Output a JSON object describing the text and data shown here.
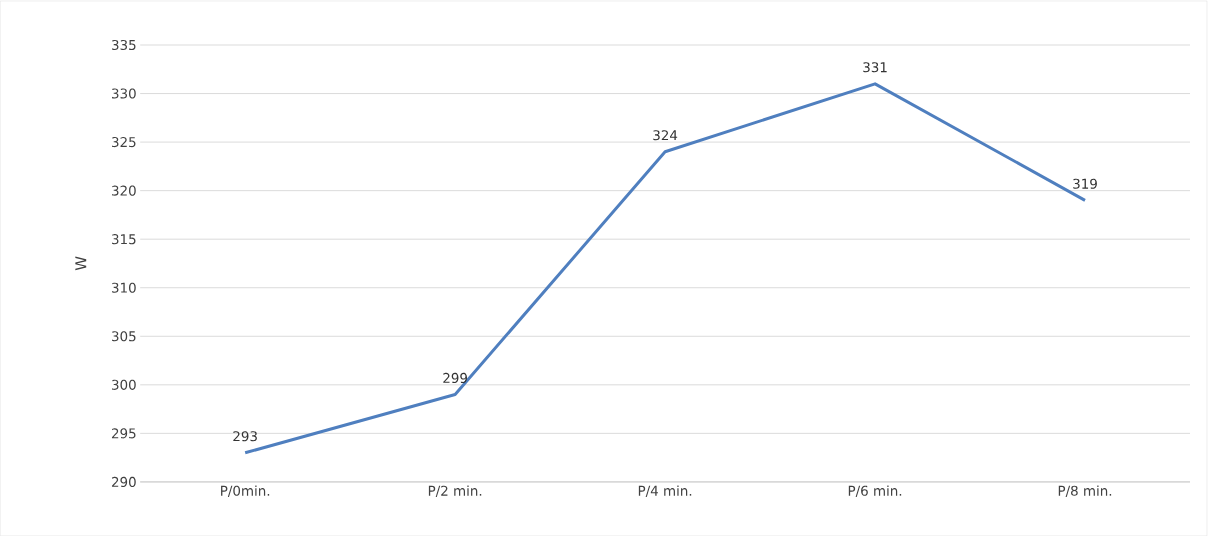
{
  "chart_data": {
    "type": "line",
    "ylabel": "W",
    "categories": [
      "P/0min.",
      "P/2 min.",
      "P/4 min.",
      "P/6 min.",
      "P/8 min."
    ],
    "series": [
      {
        "color": "#4f7fbf",
        "values": [
          293,
          299,
          324,
          331,
          319
        ]
      }
    ],
    "ylim": [
      290,
      335
    ],
    "yticks": [
      290,
      295,
      300,
      305,
      310,
      315,
      320,
      325,
      330,
      335
    ],
    "grid": "y",
    "data_labels": true,
    "marker": "none",
    "line_style": "solid"
  }
}
